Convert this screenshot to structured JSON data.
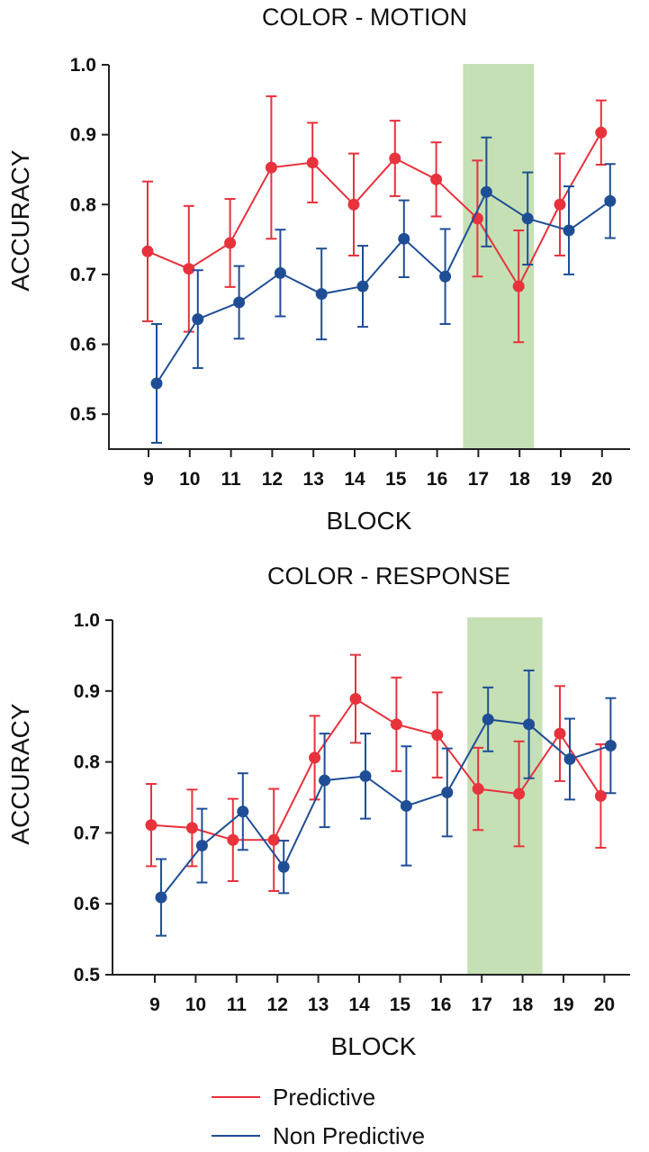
{
  "chart_data": [
    {
      "type": "line",
      "title": "COLOR - MOTION",
      "xlabel": "BLOCK",
      "ylabel": "ACCURACY",
      "ylim": [
        0.45,
        1.0
      ],
      "yticks": [
        "0.5",
        "0.6",
        "0.7",
        "0.8",
        "0.9",
        "1.0"
      ],
      "categories": [
        "9",
        "10",
        "11",
        "12",
        "13",
        "14",
        "15",
        "16",
        "17",
        "18",
        "19",
        "20"
      ],
      "highlight": {
        "from": "17",
        "to": "18",
        "color": "#c5e0b4"
      },
      "series": [
        {
          "name": "Predictive",
          "color": "#e8323c",
          "values": [
            0.733,
            0.708,
            0.745,
            0.853,
            0.86,
            0.8,
            0.866,
            0.836,
            0.78,
            0.683,
            0.8,
            0.903
          ],
          "error": [
            0.1,
            0.09,
            0.063,
            0.102,
            0.057,
            0.073,
            0.054,
            0.053,
            0.083,
            0.08,
            0.073,
            0.046
          ]
        },
        {
          "name": "Non Predictive",
          "color": "#1f4e96",
          "values": [
            0.544,
            0.636,
            0.66,
            0.702,
            0.672,
            0.683,
            0.751,
            0.697,
            0.818,
            0.78,
            0.763,
            0.805
          ],
          "error": [
            0.085,
            0.07,
            0.052,
            0.062,
            0.065,
            0.058,
            0.055,
            0.068,
            0.078,
            0.066,
            0.063,
            0.053
          ]
        }
      ]
    },
    {
      "type": "line",
      "title": "COLOR - RESPONSE",
      "xlabel": "BLOCK",
      "ylabel": "ACCURACY",
      "ylim": [
        0.5,
        1.0
      ],
      "yticks": [
        "0.5",
        "0.6",
        "0.7",
        "0.8",
        "0.9",
        "1.0"
      ],
      "categories": [
        "9",
        "10",
        "11",
        "12",
        "13",
        "14",
        "15",
        "16",
        "17",
        "18",
        "19",
        "20"
      ],
      "highlight": {
        "from": "17",
        "to": "18",
        "color": "#c5e0b4"
      },
      "series": [
        {
          "name": "Predictive",
          "color": "#e8323c",
          "values": [
            0.711,
            0.707,
            0.69,
            0.69,
            0.806,
            0.889,
            0.853,
            0.838,
            0.762,
            0.755,
            0.84,
            0.752
          ],
          "error": [
            0.058,
            0.054,
            0.058,
            0.072,
            0.059,
            0.062,
            0.066,
            0.06,
            0.058,
            0.074,
            0.067,
            0.073
          ]
        },
        {
          "name": "Non Predictive",
          "color": "#1f4e96",
          "values": [
            0.609,
            0.682,
            0.73,
            0.652,
            0.774,
            0.78,
            0.738,
            0.757,
            0.86,
            0.853,
            0.804,
            0.823
          ],
          "error": [
            0.054,
            0.052,
            0.054,
            0.037,
            0.066,
            0.06,
            0.084,
            0.062,
            0.045,
            0.076,
            0.057,
            0.067
          ]
        }
      ]
    }
  ],
  "legend": {
    "items": [
      {
        "label": "Predictive",
        "color": "#e8323c"
      },
      {
        "label": "Non Predictive",
        "color": "#1f4e96"
      }
    ]
  }
}
